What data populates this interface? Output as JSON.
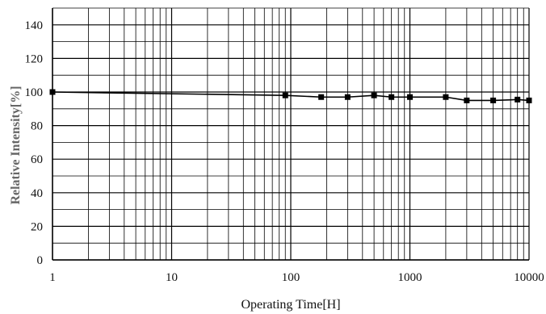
{
  "chart_data": {
    "type": "line",
    "xlabel": "Operating Time[H]",
    "ylabel": "Relative Intensity[%]",
    "xscale": "log",
    "xlim": [
      1,
      10000
    ],
    "ylim": [
      0,
      150
    ],
    "y_tick_values": [
      0,
      20,
      40,
      60,
      80,
      100,
      120,
      140
    ],
    "y_tick_labels": [
      "0",
      "20",
      "40",
      "60",
      "80",
      "100",
      "120",
      "140"
    ],
    "x_tick_values": [
      1,
      10,
      100,
      1000,
      10000
    ],
    "x_tick_labels": [
      "1",
      "10",
      "100",
      "1000",
      "10000"
    ],
    "grid": "on",
    "legend": "none",
    "series": [
      {
        "x": [
          1,
          90,
          180,
          300,
          500,
          700,
          1000,
          2000,
          3000,
          5000,
          8000,
          10000
        ],
        "y": [
          100,
          98,
          97,
          97,
          98,
          97,
          97,
          97,
          95,
          95,
          95.5,
          95
        ],
        "marker": "square",
        "color": "#000000"
      }
    ]
  }
}
